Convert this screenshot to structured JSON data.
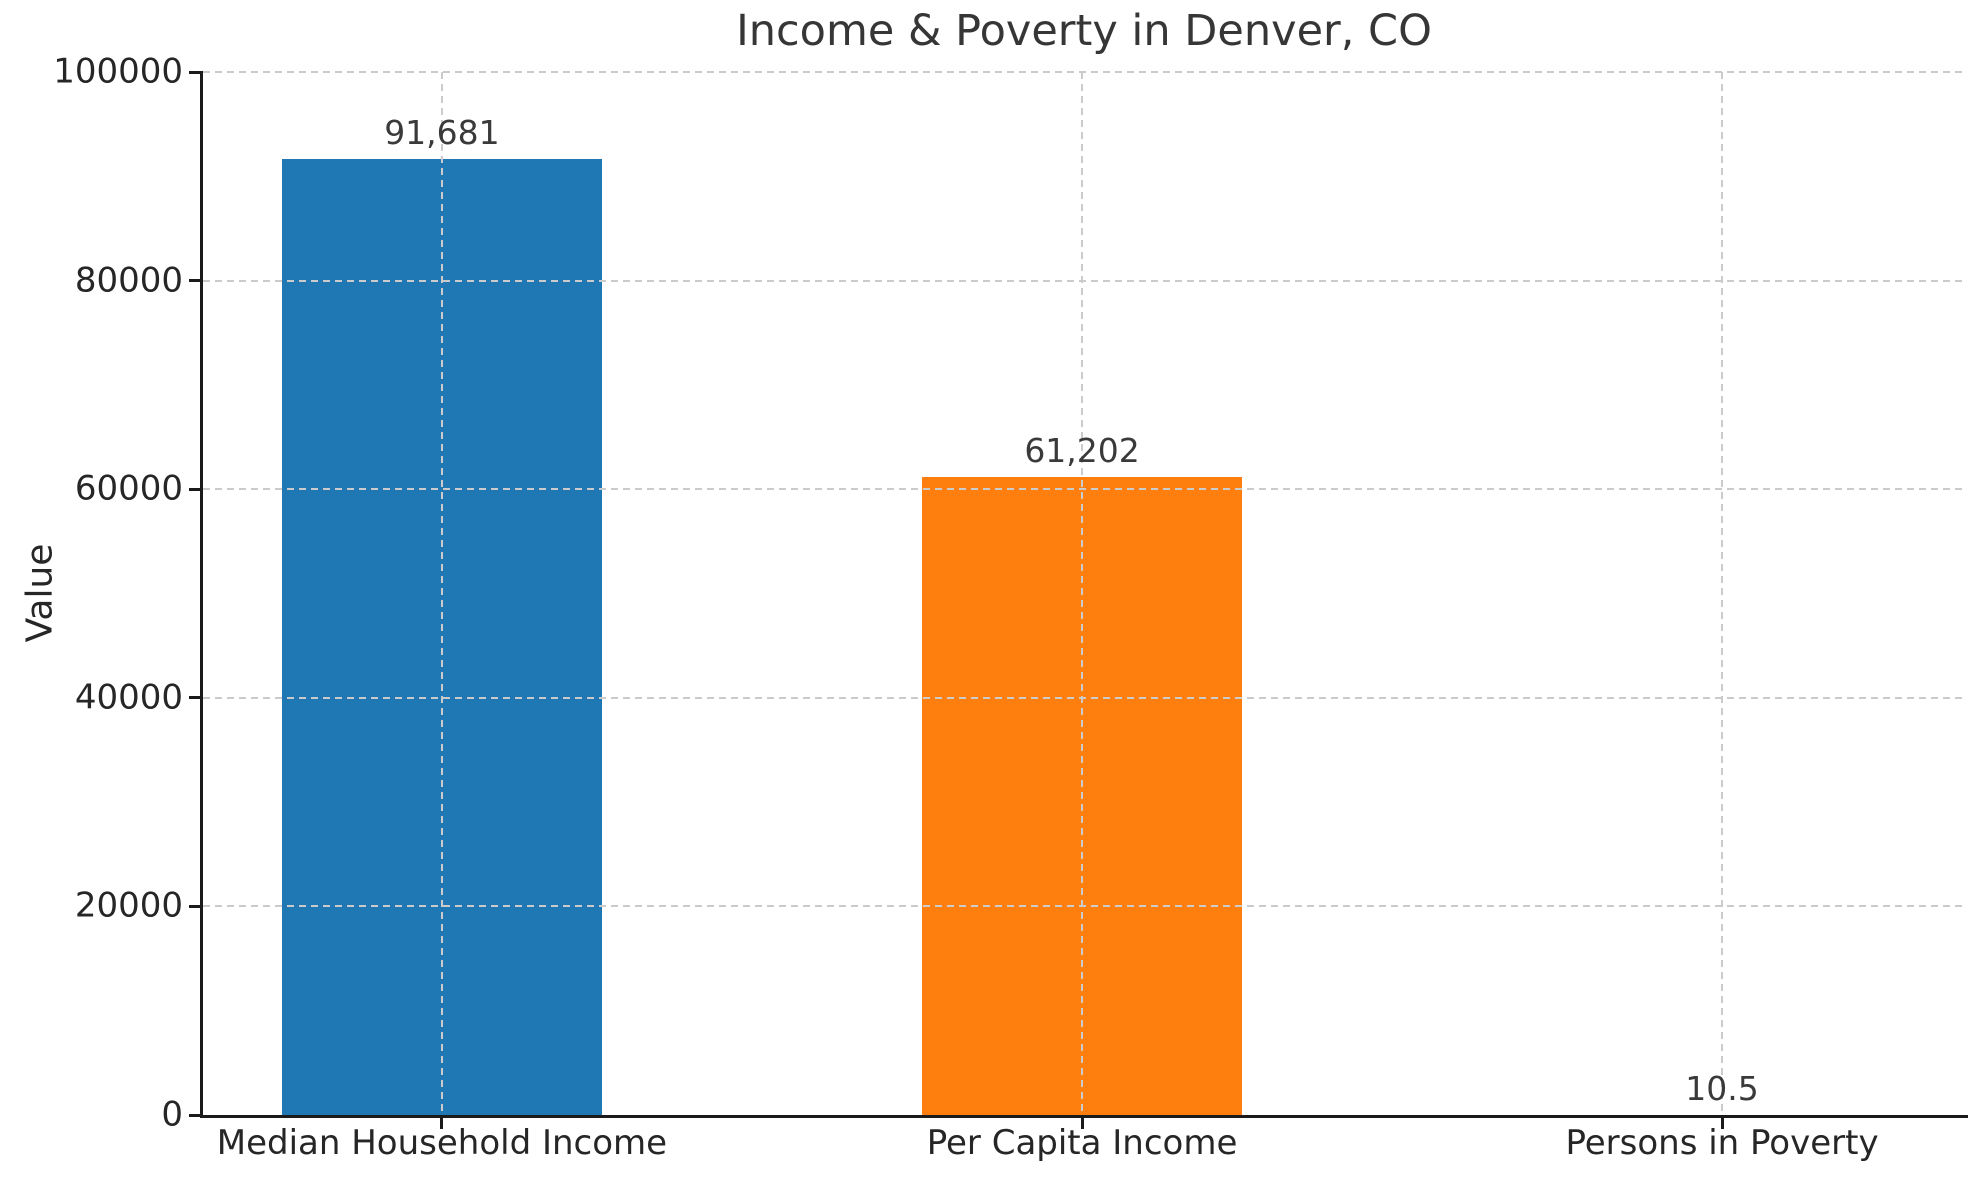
{
  "chart_data": {
    "type": "bar",
    "title": "Income & Poverty in Denver, CO",
    "ylabel": "Value",
    "categories": [
      "Median Household Income",
      "Per Capita Income",
      "Persons in Poverty"
    ],
    "values": [
      91681,
      61202,
      10.5
    ],
    "value_labels": [
      "91,681",
      "61,202",
      "10.5"
    ],
    "bar_colors": [
      "#1f77b4",
      "#ff7f0e",
      "#2ca02c"
    ],
    "ylim": [
      0,
      100000
    ],
    "yticks": [
      0,
      20000,
      40000,
      60000,
      80000,
      100000
    ],
    "ytick_labels": [
      "0",
      "20000",
      "40000",
      "60000",
      "80000",
      "100000"
    ],
    "grid": "dashed",
    "grid_over_bars": true,
    "legend": "none"
  }
}
